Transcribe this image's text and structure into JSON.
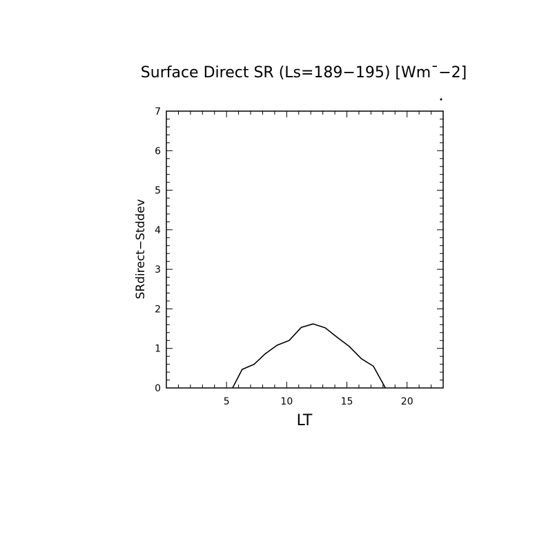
{
  "chart_data": {
    "type": "line",
    "title": "Surface Direct SR (Ls=189−195) [Wm¯−2]",
    "xlabel": "LT",
    "ylabel": "SRdirect−Stddev",
    "xlim": [
      0,
      23
    ],
    "ylim": [
      0,
      7
    ],
    "xticks": [
      5,
      10,
      15,
      20
    ],
    "yticks": [
      0,
      1,
      2,
      3,
      4,
      5,
      6,
      7
    ],
    "grid": false,
    "series": [
      {
        "x": [
          5.5,
          6.3,
          7.3,
          8.2,
          9.2,
          10.2,
          11.2,
          12.2,
          13.2,
          14.2,
          15.2,
          16.2,
          17.2,
          18.2
        ],
        "y": [
          0.0,
          0.47,
          0.6,
          0.86,
          1.08,
          1.2,
          1.53,
          1.62,
          1.52,
          1.28,
          1.05,
          0.74,
          0.55,
          0.0
        ]
      }
    ]
  }
}
